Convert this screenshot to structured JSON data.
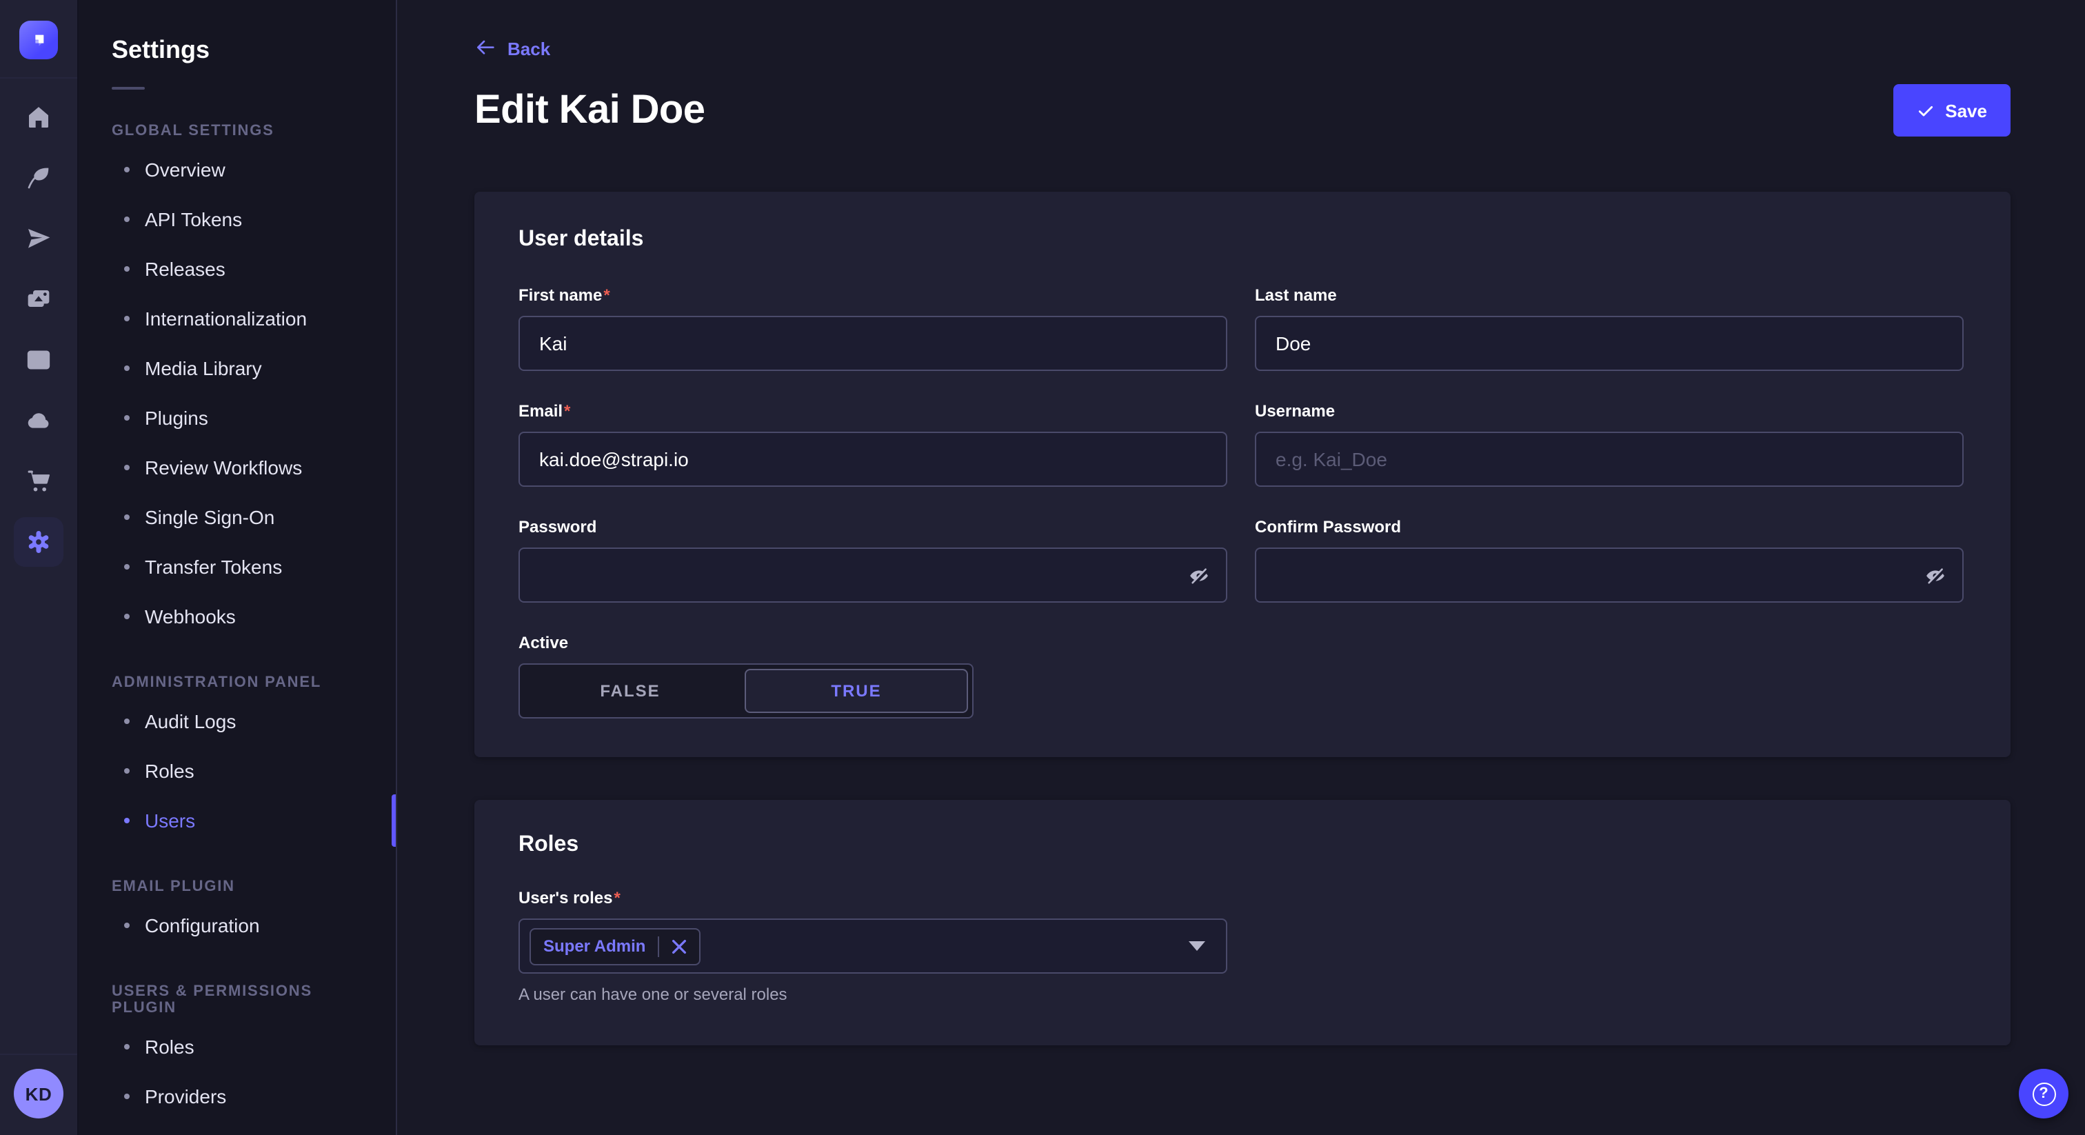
{
  "colors": {
    "accent": "#4945ff",
    "accent_light": "#7b79ff",
    "error": "#ee5e52",
    "page_bg": "#181826",
    "card_bg": "#212134"
  },
  "required_mark": "*",
  "rail": {
    "logo": "strapi-logo",
    "icons": [
      "home-icon",
      "feather-icon",
      "paper-plane-icon",
      "media-library-icon",
      "layout-icon",
      "cloud-icon",
      "cart-icon",
      "settings-gear-icon"
    ],
    "active_icon": "settings-gear-icon",
    "avatar_initials": "KD"
  },
  "subnav": {
    "title": "Settings",
    "sections": [
      {
        "label": "GLOBAL SETTINGS",
        "items": [
          {
            "label": "Overview"
          },
          {
            "label": "API Tokens"
          },
          {
            "label": "Releases"
          },
          {
            "label": "Internationalization"
          },
          {
            "label": "Media Library"
          },
          {
            "label": "Plugins"
          },
          {
            "label": "Review Workflows"
          },
          {
            "label": "Single Sign-On"
          },
          {
            "label": "Transfer Tokens"
          },
          {
            "label": "Webhooks"
          }
        ]
      },
      {
        "label": "ADMINISTRATION PANEL",
        "items": [
          {
            "label": "Audit Logs"
          },
          {
            "label": "Roles"
          },
          {
            "label": "Users",
            "active": true
          }
        ]
      },
      {
        "label": "EMAIL PLUGIN",
        "items": [
          {
            "label": "Configuration"
          }
        ]
      },
      {
        "label": "USERS & PERMISSIONS PLUGIN",
        "items": [
          {
            "label": "Roles"
          },
          {
            "label": "Providers"
          }
        ]
      }
    ]
  },
  "header": {
    "back_label": "Back",
    "title": "Edit Kai Doe",
    "save_label": "Save"
  },
  "user_details": {
    "title": "User details",
    "first_name": {
      "label": "First name",
      "value": "Kai",
      "required": true
    },
    "last_name": {
      "label": "Last name",
      "value": "Doe"
    },
    "email": {
      "label": "Email",
      "value": "kai.doe@strapi.io",
      "required": true
    },
    "username": {
      "label": "Username",
      "value": "",
      "placeholder": "e.g. Kai_Doe"
    },
    "password": {
      "label": "Password",
      "value": ""
    },
    "confirm_password": {
      "label": "Confirm Password",
      "value": ""
    },
    "active": {
      "label": "Active",
      "options": [
        "FALSE",
        "TRUE"
      ],
      "selected": "TRUE"
    }
  },
  "roles_card": {
    "title": "Roles",
    "label": "User's roles",
    "required": true,
    "selected_roles": [
      "Super Admin"
    ],
    "helper": "A user can have one or several roles"
  },
  "help": {
    "icon": "question-mark-icon"
  }
}
